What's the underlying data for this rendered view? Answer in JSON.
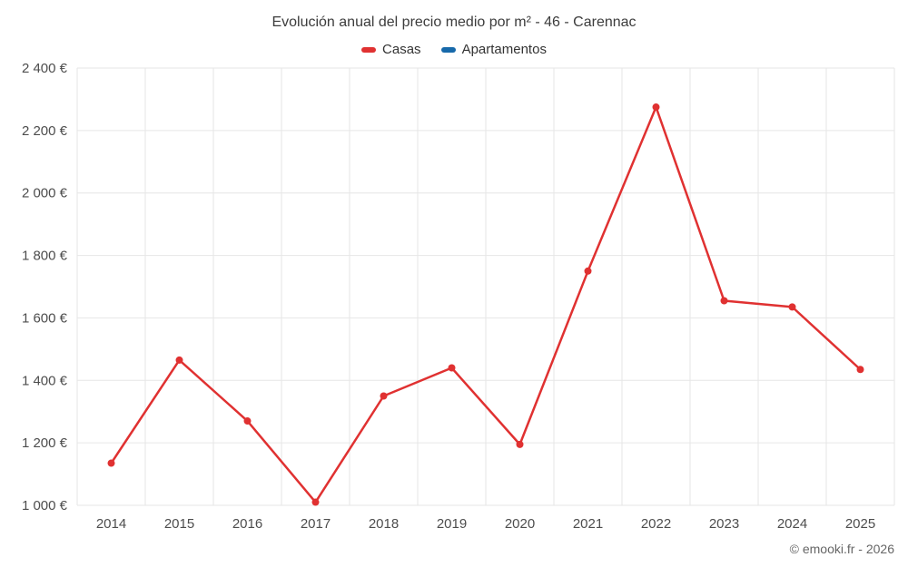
{
  "chart": {
    "title": "Evolución anual del precio medio por m² - 46 - Carennac",
    "footer": "© emooki.fr - 2026"
  },
  "legend": {
    "items": [
      {
        "label": "Casas",
        "color": "#e03131"
      },
      {
        "label": "Apartamentos",
        "color": "#1769aa"
      }
    ]
  },
  "chart_data": {
    "type": "line",
    "title": "Evolución anual del precio medio por m² - 46 - Carennac",
    "categories": [
      "2014",
      "2015",
      "2016",
      "2017",
      "2018",
      "2019",
      "2020",
      "2021",
      "2022",
      "2023",
      "2024",
      "2025"
    ],
    "series": [
      {
        "name": "Casas",
        "color": "#e03131",
        "values": [
          1135,
          1465,
          1270,
          1010,
          1350,
          1440,
          1195,
          1750,
          2275,
          1655,
          1635,
          1435
        ]
      }
    ],
    "yticks": [
      {
        "value": 1000,
        "label": "1 000 €"
      },
      {
        "value": 1200,
        "label": "1 200 €"
      },
      {
        "value": 1400,
        "label": "1 400 €"
      },
      {
        "value": 1600,
        "label": "1 600 €"
      },
      {
        "value": 1800,
        "label": "1 800 €"
      },
      {
        "value": 2000,
        "label": "2 000 €"
      },
      {
        "value": 2200,
        "label": "2 200 €"
      },
      {
        "value": 2400,
        "label": "2 400 €"
      }
    ],
    "xlabel": "",
    "ylabel": "",
    "ylim": [
      1000,
      2400
    ],
    "grid": true,
    "legend_position": "top"
  }
}
